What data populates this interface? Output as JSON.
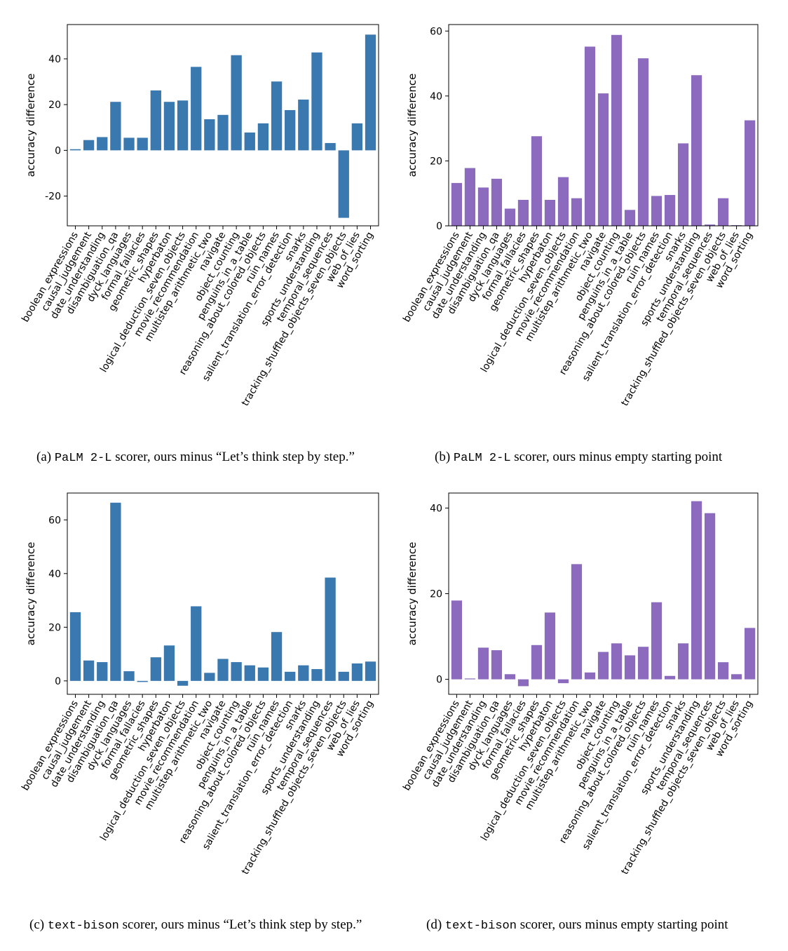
{
  "colors": {
    "blue": "#3a78b0",
    "purple": "#8c6bbf"
  },
  "chart_data": [
    {
      "type": "bar",
      "ylabel": "accuracy difference",
      "ylim": [
        -33,
        55
      ],
      "yticks": [
        -20,
        0,
        20,
        40
      ],
      "color": "#3a78b0",
      "categories": [
        "boolean_expressions",
        "causal_judgement",
        "date_understanding",
        "disambiguation_qa",
        "dyck_languages",
        "formal_fallacies",
        "geometric_shapes",
        "hyperbaton",
        "logical_deduction_seven_objects",
        "movie_recommendation",
        "multistep_arithmetic_two",
        "navigate",
        "object_counting",
        "penguins_in_a_table",
        "reasoning_about_colored_objects",
        "ruin_names",
        "salient_translation_error_detection",
        "snarks",
        "sports_understanding",
        "temporal_sequences",
        "tracking_shuffled_objects_seven_objects",
        "web_of_lies",
        "word_sorting"
      ],
      "values": [
        0.5,
        4.5,
        5.8,
        21.2,
        5.5,
        5.5,
        26.2,
        21.2,
        21.8,
        36.5,
        13.6,
        15.5,
        41.6,
        7.8,
        11.8,
        30.1,
        17.6,
        22.2,
        42.8,
        3.2,
        -29.5,
        11.8,
        50.6
      ],
      "caption_letter": "(a)",
      "caption_model": "PaLM 2-L",
      "caption_text": "scorer, ours minus “Let’s think step by step.”"
    },
    {
      "type": "bar",
      "ylabel": "accuracy difference",
      "ylim": [
        0,
        62
      ],
      "yticks": [
        0,
        20,
        40,
        60
      ],
      "color": "#8c6bbf",
      "categories": [
        "boolean_expressions",
        "causal_judgement",
        "date_understanding",
        "disambiguation_qa",
        "dyck_languages",
        "formal_fallacies",
        "geometric_shapes",
        "hyperbaton",
        "logical_deduction_seven_objects",
        "movie_recommendation",
        "multistep_arithmetic_two",
        "navigate",
        "object_counting",
        "penguins_in_a_table",
        "reasoning_about_colored_objects",
        "ruin_names",
        "salient_translation_error_detection",
        "snarks",
        "sports_understanding",
        "temporal_sequences",
        "tracking_shuffled_objects_seven_objects",
        "web_of_lies",
        "word_sorting"
      ],
      "values": [
        13.2,
        17.8,
        11.8,
        14.5,
        5.3,
        8.0,
        27.6,
        8.0,
        15.0,
        8.5,
        55.2,
        40.8,
        58.8,
        4.9,
        51.6,
        9.2,
        9.5,
        25.4,
        46.4,
        0.4,
        8.5,
        0.2,
        32.5
      ],
      "caption_letter": "(b)",
      "caption_model": "PaLM 2-L",
      "caption_text": "scorer, ours minus empty starting point"
    },
    {
      "type": "bar",
      "ylabel": "accuracy difference",
      "ylim": [
        -5,
        70
      ],
      "yticks": [
        0,
        20,
        40,
        60
      ],
      "color": "#3a78b0",
      "categories": [
        "boolean_expressions",
        "causal_judgement",
        "date_understanding",
        "disambiguation_qa",
        "dyck_languages",
        "formal_fallacies",
        "geometric_shapes",
        "hyperbaton",
        "logical_deduction_seven_objects",
        "movie_recommendation",
        "multistep_arithmetic_two",
        "navigate",
        "object_counting",
        "penguins_in_a_table",
        "reasoning_about_colored_objects",
        "ruin_names",
        "salient_translation_error_detection",
        "snarks",
        "sports_understanding",
        "temporal_sequences",
        "tracking_shuffled_objects_seven_objects",
        "web_of_lies",
        "word_sorting"
      ],
      "values": [
        25.6,
        7.6,
        7.0,
        66.4,
        3.6,
        -0.4,
        8.8,
        13.2,
        -1.8,
        27.8,
        3.0,
        8.2,
        7.0,
        5.8,
        5.0,
        18.2,
        3.4,
        5.8,
        4.4,
        38.5,
        3.4,
        6.5,
        7.2
      ],
      "caption_letter": "(c)",
      "caption_model": "text-bison",
      "caption_text": "scorer, ours minus “Let’s think step by step.”"
    },
    {
      "type": "bar",
      "ylabel": "accuracy difference",
      "ylim": [
        -3.5,
        43.5
      ],
      "yticks": [
        0,
        20,
        40
      ],
      "color": "#8c6bbf",
      "categories": [
        "boolean_expressions",
        "causal_judgement",
        "date_understanding",
        "disambiguation_qa",
        "dyck_languages",
        "formal_fallacies",
        "geometric_shapes",
        "hyperbaton",
        "logical_deduction_seven_objects",
        "movie_recommendation",
        "multistep_arithmetic_two",
        "navigate",
        "object_counting",
        "penguins_in_a_table",
        "reasoning_about_colored_objects",
        "ruin_names",
        "salient_translation_error_detection",
        "snarks",
        "sports_understanding",
        "temporal_sequences",
        "tracking_shuffled_objects_seven_objects",
        "web_of_lies",
        "word_sorting"
      ],
      "values": [
        18.4,
        0.2,
        7.4,
        6.8,
        1.2,
        -1.6,
        8.0,
        15.6,
        -0.9,
        26.9,
        1.6,
        6.4,
        8.4,
        5.6,
        7.6,
        18.0,
        0.8,
        8.4,
        41.6,
        38.8,
        4.0,
        1.2,
        12.0
      ],
      "caption_letter": "(d)",
      "caption_model": "text-bison",
      "caption_text": "scorer, ours minus empty starting point"
    }
  ]
}
